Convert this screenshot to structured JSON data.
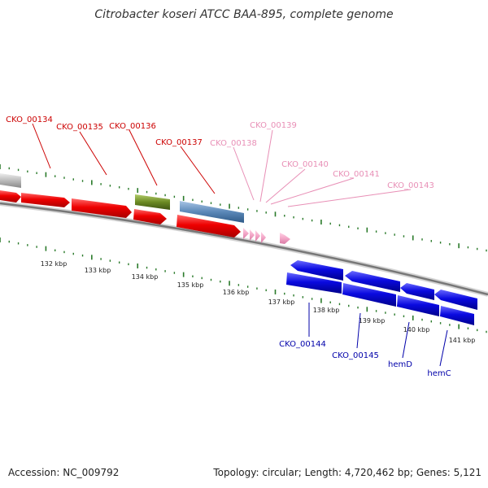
{
  "title": "Citrobacter koseri ATCC BAA-895, complete genome",
  "footer": {
    "accession": "Accession: NC_009792",
    "topology": "Topology: circular; Length: 4,720,462 bp; Genes: 5,121"
  },
  "colors": {
    "red": "#e00000",
    "pink": "#f3a7c8",
    "blue": "#0a0ad8",
    "steel": "#5b88b8",
    "olive": "#6b8a23",
    "gray": "#bbbbbb",
    "tick": "#2a7a2a",
    "label_red": "#cc0000",
    "label_pink": "#e88fb6",
    "label_blue": "#0000aa"
  },
  "scale_labels": [
    "132 kbp",
    "133 kbp",
    "134 kbp",
    "135 kbp",
    "136 kbp",
    "137 kbp",
    "138 kbp",
    "139 kbp",
    "140 kbp",
    "141 kbp"
  ],
  "gene_labels": [
    {
      "text": "CKO_00134",
      "color": "red"
    },
    {
      "text": "CKO_00135",
      "color": "red"
    },
    {
      "text": "CKO_00136",
      "color": "red"
    },
    {
      "text": "CKO_00137",
      "color": "red"
    },
    {
      "text": "CKO_00138",
      "color": "pink"
    },
    {
      "text": "CKO_00139",
      "color": "pink"
    },
    {
      "text": "CKO_00140",
      "color": "pink"
    },
    {
      "text": "CKO_00141",
      "color": "pink"
    },
    {
      "text": "CKO_00143",
      "color": "pink"
    },
    {
      "text": "CKO_00144",
      "color": "blue"
    },
    {
      "text": "CKO_00145",
      "color": "blue"
    },
    {
      "text": "hemD",
      "color": "blue"
    },
    {
      "text": "hemC",
      "color": "blue"
    }
  ]
}
